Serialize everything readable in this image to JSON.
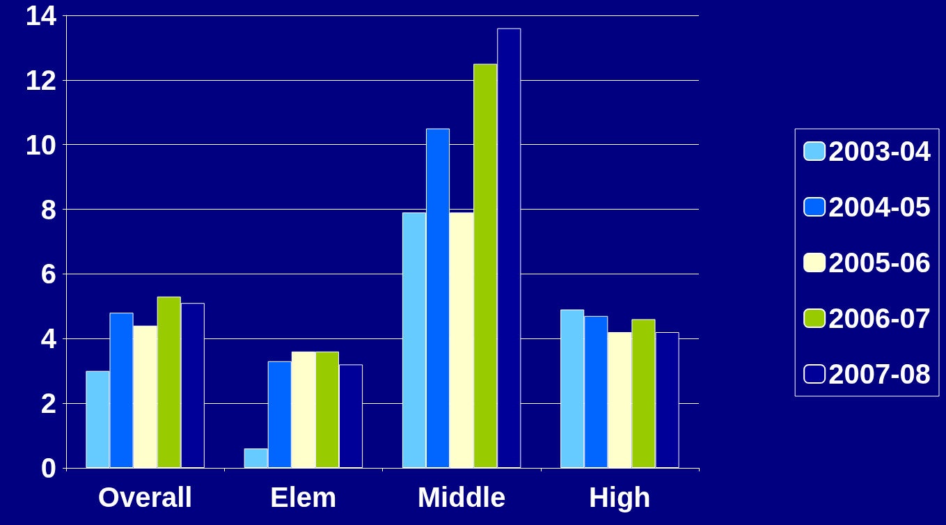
{
  "chart_data": {
    "type": "bar",
    "categories": [
      "Overall",
      "Elem",
      "Middle",
      "High"
    ],
    "series": [
      {
        "name": "2003-04",
        "color": "#66ccff",
        "values": [
          3.0,
          0.6,
          7.9,
          4.9
        ]
      },
      {
        "name": "2004-05",
        "color": "#0066ff",
        "values": [
          4.8,
          3.3,
          10.5,
          4.7
        ]
      },
      {
        "name": "2005-06",
        "color": "#ffffcc",
        "values": [
          4.4,
          3.6,
          7.9,
          4.2
        ]
      },
      {
        "name": "2006-07",
        "color": "#99cc00",
        "values": [
          5.3,
          3.6,
          12.5,
          4.6
        ]
      },
      {
        "name": "2007-08",
        "color": "#000099",
        "values": [
          5.1,
          3.2,
          13.6,
          4.2
        ]
      }
    ],
    "ylim": [
      0,
      14
    ],
    "yticks": [
      0,
      2,
      4,
      6,
      8,
      10,
      12,
      14
    ],
    "grid": "y",
    "legend": "right"
  }
}
